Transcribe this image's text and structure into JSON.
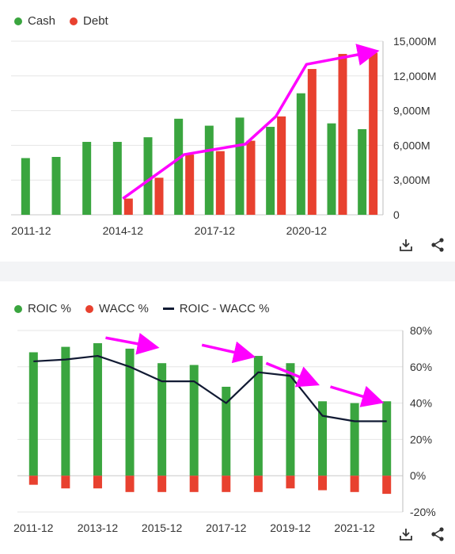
{
  "chart_data": [
    {
      "type": "bar",
      "legend": [
        "Cash",
        "Debt"
      ],
      "colors": {
        "Cash": "#3aa53f",
        "Debt": "#e8412f"
      },
      "categories": [
        "2011-12",
        "2012-12",
        "2013-12",
        "2014-12",
        "2015-12",
        "2016-12",
        "2017-12",
        "2018-12",
        "2019-12",
        "2020-12",
        "2021-12",
        "2022-12"
      ],
      "x_tick_labels": [
        "2011-12",
        "2014-12",
        "2017-12",
        "2020-12"
      ],
      "series": [
        {
          "name": "Cash",
          "values": [
            4900,
            5000,
            6300,
            6300,
            6700,
            8300,
            7700,
            8400,
            7600,
            10500,
            7900,
            7400
          ]
        },
        {
          "name": "Debt",
          "values": [
            null,
            null,
            null,
            1400,
            3200,
            5200,
            5500,
            6400,
            8500,
            12600,
            13900,
            14000
          ]
        }
      ],
      "ylim": [
        0,
        15000
      ],
      "y_tick_labels": [
        "0",
        "3,000M",
        "6,000M",
        "9,000M",
        "12,000M",
        "15,000M"
      ],
      "y_axis_side": "right",
      "annotation_arrow": {
        "color": "#ff00ff",
        "x": [
          "2014-12",
          "2016-12",
          "2018-12",
          "2019-12",
          "2020-12",
          "2022-12"
        ],
        "y": [
          1400,
          5200,
          6100,
          8500,
          13000,
          14100
        ]
      }
    },
    {
      "type": "bar+line",
      "legend": [
        "ROIC %",
        "WACC %",
        "ROIC - WACC %"
      ],
      "colors": {
        "ROIC %": "#3aa53f",
        "WACC %": "#e8412f",
        "ROIC - WACC %": "#111a33"
      },
      "categories": [
        "2011-12",
        "2012-12",
        "2013-12",
        "2014-12",
        "2015-12",
        "2016-12",
        "2017-12",
        "2018-12",
        "2019-12",
        "2020-12",
        "2021-12",
        "2022-12"
      ],
      "x_tick_labels": [
        "2011-12",
        "2013-12",
        "2015-12",
        "2017-12",
        "2019-12",
        "2021-12"
      ],
      "series": [
        {
          "name": "ROIC %",
          "values": [
            68,
            71,
            73,
            70,
            62,
            61,
            49,
            66,
            62,
            41,
            40,
            41
          ]
        },
        {
          "name": "WACC %",
          "values": [
            -5,
            -7,
            -7,
            -9,
            -9,
            -9,
            -9,
            -9,
            -7,
            -8,
            -9,
            -10
          ]
        },
        {
          "name": "ROIC - WACC %",
          "values": [
            63,
            64,
            66,
            60,
            52,
            52,
            40,
            57,
            55,
            33,
            30,
            30
          ]
        }
      ],
      "ylim": [
        -20,
        80
      ],
      "y_tick_labels": [
        "-20%",
        "0%",
        "20%",
        "40%",
        "60%",
        "80%"
      ],
      "y_axis_side": "right",
      "annotation_arrows": [
        {
          "x": [
            "2013-12",
            "2015-12"
          ],
          "y": [
            76,
            71
          ]
        },
        {
          "x": [
            "2016-12",
            "2018-12"
          ],
          "y": [
            72,
            66
          ]
        },
        {
          "x": [
            "2018-12",
            "2020-12"
          ],
          "y": [
            62,
            51
          ]
        },
        {
          "x": [
            "2020-12",
            "2022-12"
          ],
          "y": [
            49,
            41
          ]
        }
      ]
    }
  ],
  "icons": {
    "download": "download-icon",
    "share": "share-icon"
  }
}
